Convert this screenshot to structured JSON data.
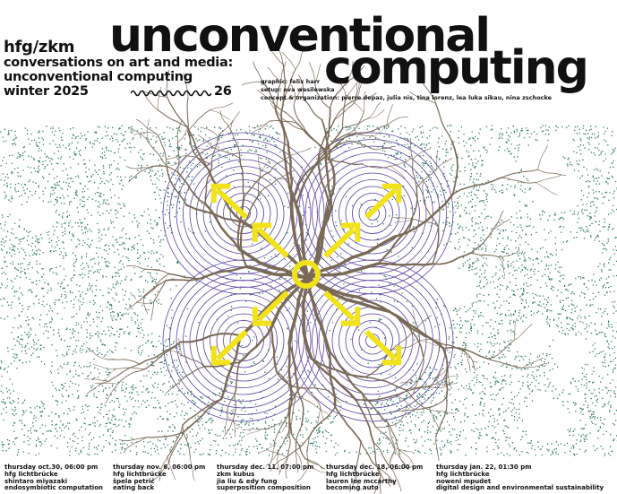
{
  "header": {
    "org": "hfg/zkm",
    "title_line1": "unconventional",
    "title_line2": "computing",
    "series": "conversations on art and media:",
    "subtitle": "unconventional computing",
    "season": "winter 2025",
    "season_end": "26"
  },
  "credits": {
    "graphic": "graphic: felix harr",
    "setup": "setup: eva wasilewska",
    "concept": "concept & organization: pierre depaz, julia nis, tina lorenz, lea luka sikau, nina zschocke"
  },
  "events": [
    {
      "date": "thursday oct.30, 06:00 pm",
      "venue": "hfg lichtbrücke",
      "speaker": "shintaro miyazaki",
      "title": "endosymbiotic computation"
    },
    {
      "date": "thursday nov. 6, 06:00 pm",
      "venue": "hfg lichtbrücke",
      "speaker": "špela petrič",
      "title": "eating back"
    },
    {
      "date": "thursday dec. 11, 07:00 pm",
      "venue": "zkm kubus",
      "speaker": "jia liu & edy fung",
      "title": "superposition composition"
    },
    {
      "date": "thursday dec. 18, 06:00 pm",
      "venue": "hfg lichtbrücke",
      "speaker": "lauren lee mccarthy",
      "title": "becoming auto"
    },
    {
      "date": "thursday jan. 22, 01:30 pm",
      "venue": "hfg lichtbrücke",
      "speaker": "noweni mpudet",
      "title": "digital design and environmental sustainability"
    }
  ],
  "colors": {
    "texture": "#2f7a6a",
    "branches": "#7a6a55",
    "circles": "#5a3fa0",
    "arrows": "#f2e21a"
  }
}
